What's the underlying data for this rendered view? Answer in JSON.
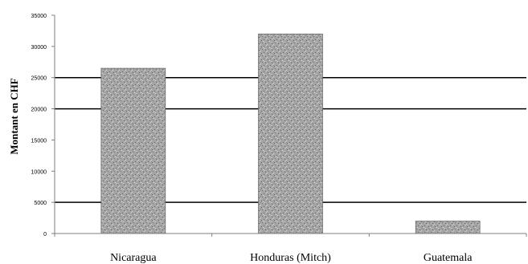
{
  "chart_data": {
    "type": "bar",
    "title": "",
    "xlabel": "",
    "ylabel": "Montant en CHF",
    "categories": [
      "Nicaragua",
      "Honduras (Mitch)",
      "Guatemala"
    ],
    "values": [
      26500,
      32000,
      2000
    ],
    "ylim": [
      0,
      35000
    ],
    "yticks": [
      "0",
      "5000",
      "10000",
      "15000",
      "20000",
      "25000",
      "30000",
      "35000"
    ],
    "gridlines": [
      5000,
      20000,
      25000
    ],
    "legend": "none",
    "colors": {
      "bar_fill": "#a6a6a6",
      "bar_texture": "#5a5a5a",
      "gridline": "#000000",
      "axis": "#7f7f7f"
    }
  }
}
